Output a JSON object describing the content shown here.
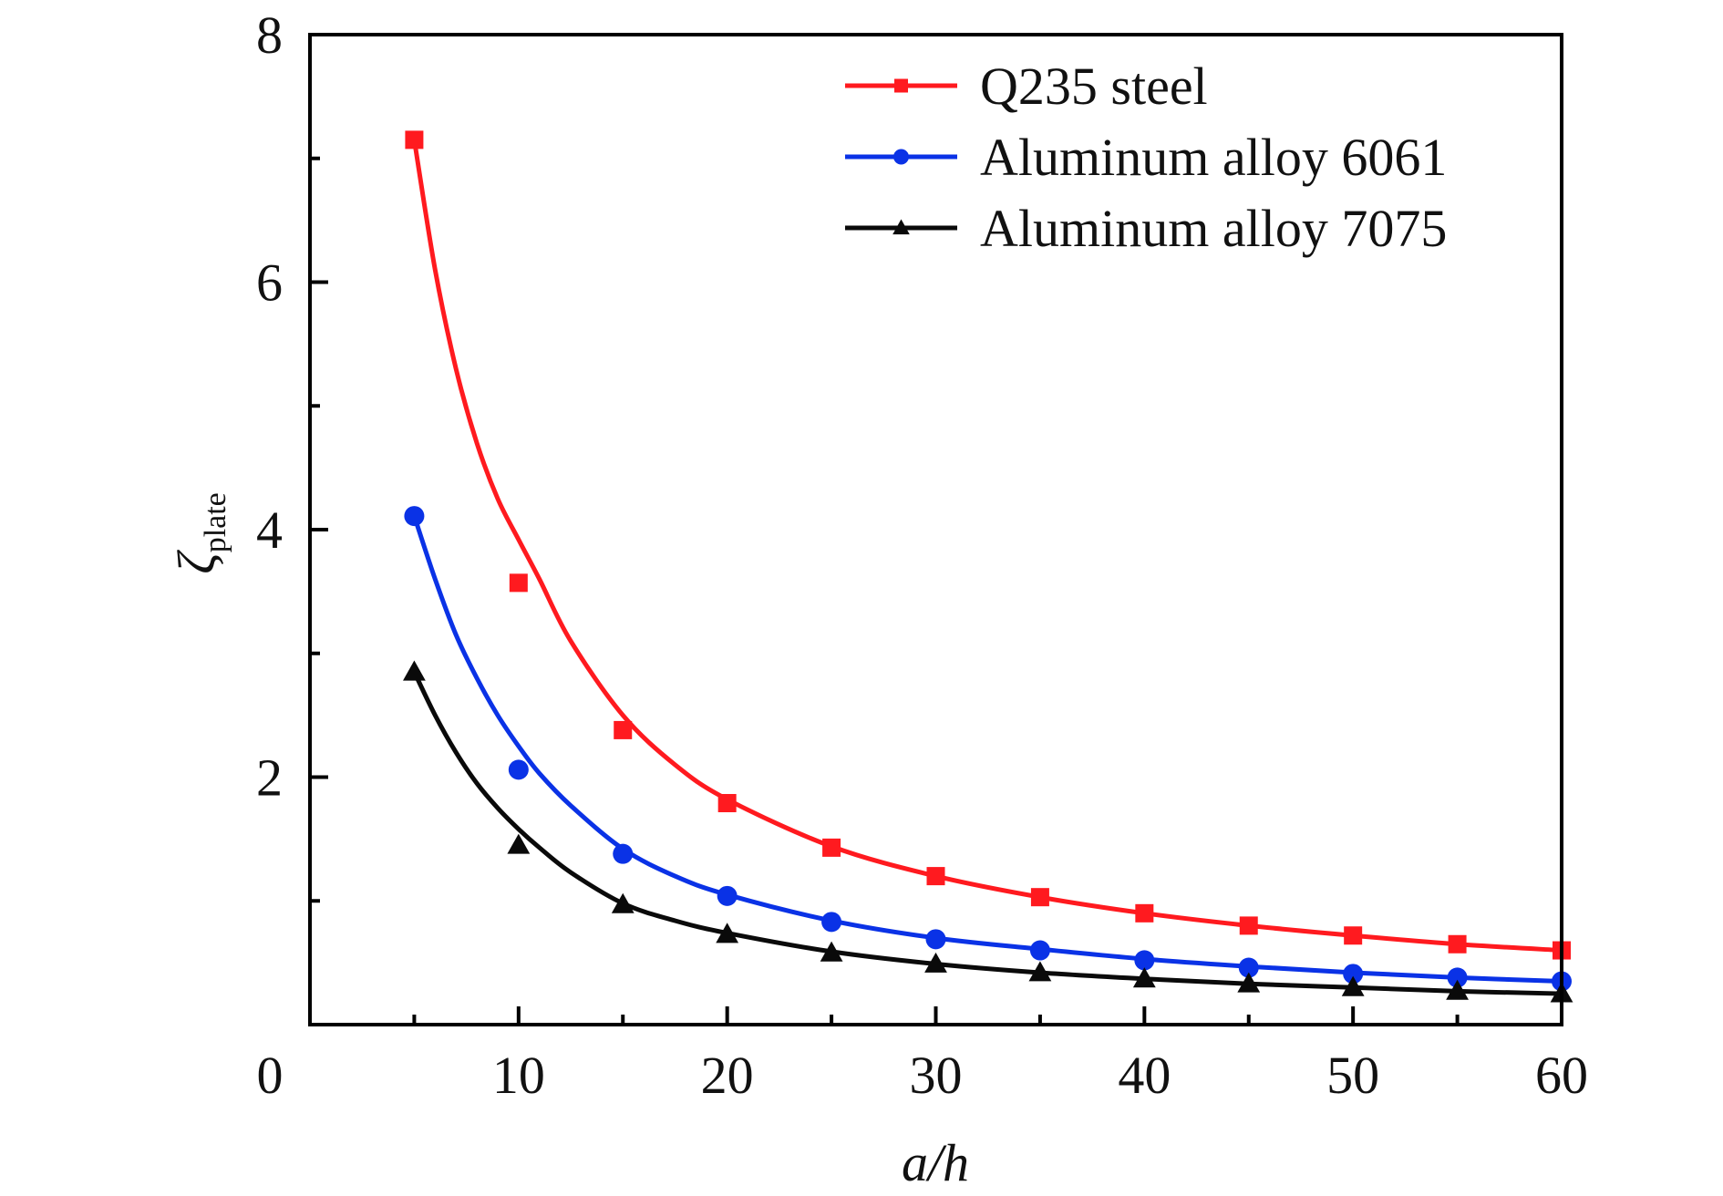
{
  "chart_data": {
    "type": "line",
    "title": "",
    "xlabel": "a/h",
    "ylabel": {
      "symbol": "ζ",
      "subscript": "plate"
    },
    "xlim": [
      0,
      60
    ],
    "ylim": [
      0,
      8
    ],
    "x_ticks": [
      0,
      10,
      20,
      30,
      40,
      50,
      60
    ],
    "x_minor_ticks": [
      5,
      15,
      25,
      35,
      45,
      55
    ],
    "y_ticks": [
      2,
      4,
      6,
      8
    ],
    "y_minor_ticks": [
      1,
      3,
      5,
      7
    ],
    "x_tick_labels": [
      "0",
      "10",
      "20",
      "30",
      "40",
      "50",
      "60"
    ],
    "y_tick_labels": [
      "2",
      "4",
      "6",
      "8"
    ],
    "grid": false,
    "legend_position": "top-right",
    "x": [
      5,
      10,
      15,
      20,
      25,
      30,
      35,
      40,
      45,
      50,
      55,
      60
    ],
    "series": [
      {
        "name": "Q235 steel",
        "color": "#ff1a1f",
        "marker": "square",
        "values": [
          7.15,
          3.57,
          2.38,
          1.79,
          1.43,
          1.2,
          1.03,
          0.9,
          0.8,
          0.72,
          0.65,
          0.6
        ],
        "fit_x": [
          5,
          6,
          7,
          8,
          9,
          10,
          11,
          12.5,
          15,
          17.5,
          20,
          25,
          30,
          35,
          40,
          45,
          50,
          55,
          60
        ],
        "fit_y": [
          7.15,
          6.1,
          5.3,
          4.7,
          4.25,
          3.92,
          3.6,
          3.1,
          2.5,
          2.1,
          1.82,
          1.44,
          1.2,
          1.03,
          0.9,
          0.8,
          0.72,
          0.65,
          0.6
        ]
      },
      {
        "name": "Aluminum alloy 6061",
        "color": "#0a32e6",
        "marker": "circle",
        "values": [
          4.11,
          2.06,
          1.38,
          1.04,
          0.83,
          0.69,
          0.6,
          0.52,
          0.46,
          0.41,
          0.38,
          0.35
        ],
        "fit_x": [
          5,
          6,
          7,
          8,
          9,
          10,
          11,
          12.5,
          15,
          17.5,
          20,
          25,
          30,
          35,
          40,
          45,
          50,
          55,
          60
        ],
        "fit_y": [
          4.11,
          3.6,
          3.15,
          2.8,
          2.5,
          2.25,
          2.03,
          1.77,
          1.42,
          1.2,
          1.05,
          0.84,
          0.7,
          0.61,
          0.53,
          0.47,
          0.42,
          0.38,
          0.35
        ]
      },
      {
        "name": "Aluminum alloy 7075",
        "color": "#0a0a0a",
        "marker": "triangle",
        "values": [
          2.85,
          1.45,
          0.97,
          0.73,
          0.58,
          0.49,
          0.42,
          0.37,
          0.33,
          0.3,
          0.27,
          0.25
        ],
        "fit_x": [
          5,
          6,
          7,
          8,
          9,
          10,
          11,
          12.5,
          15,
          17.5,
          20,
          25,
          30,
          35,
          40,
          45,
          50,
          55,
          60
        ],
        "fit_y": [
          2.85,
          2.5,
          2.2,
          1.95,
          1.75,
          1.58,
          1.43,
          1.23,
          0.98,
          0.84,
          0.74,
          0.59,
          0.49,
          0.42,
          0.37,
          0.33,
          0.3,
          0.27,
          0.25
        ]
      }
    ]
  }
}
